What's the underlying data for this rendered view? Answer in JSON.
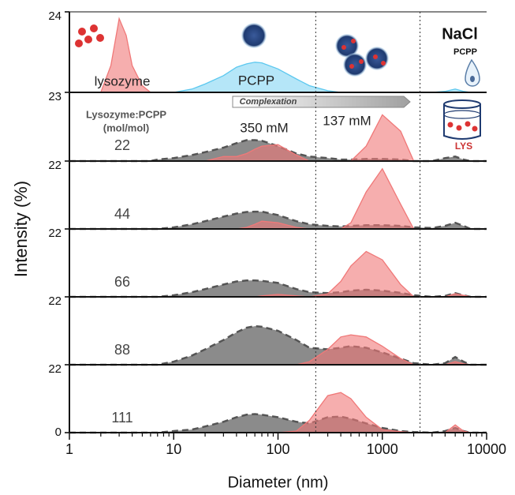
{
  "chart_data": [
    {
      "type": "area",
      "x": [
        1,
        1.5,
        2,
        2.5,
        3,
        3.5,
        4,
        5,
        6,
        7,
        10,
        15,
        20,
        30,
        40,
        50,
        60,
        70,
        100,
        150,
        200,
        300,
        400,
        500,
        700,
        1000,
        1500,
        2000,
        3000,
        4000,
        5000,
        6000,
        7000,
        10000
      ],
      "series": [
        {
          "name": "lysozyme",
          "color": "#f07878",
          "values": [
            0,
            0,
            0,
            8,
            22,
            17,
            8,
            2,
            0,
            0,
            0,
            0,
            0,
            0,
            0,
            0,
            0,
            0,
            0,
            0,
            0,
            0,
            0,
            0,
            0,
            0,
            0,
            0,
            0,
            0,
            0,
            0,
            0,
            0
          ]
        },
        {
          "name": "PCPP",
          "color": "#5cc8ef",
          "values": [
            0,
            0,
            0,
            0,
            0,
            0,
            0,
            0,
            0,
            0,
            0,
            1,
            2.5,
            5,
            7.5,
            8.5,
            9,
            8.8,
            7,
            4,
            2,
            0.5,
            0,
            0,
            0,
            0,
            0,
            0,
            0,
            0.3,
            1,
            0.3,
            0,
            0
          ]
        }
      ],
      "annotations": [
        "NaCl",
        "PCPP"
      ],
      "ylim": [
        0,
        24
      ],
      "yticks": [
        24
      ]
    },
    {
      "type": "area",
      "x": [
        1,
        1.5,
        2,
        2.5,
        3,
        3.5,
        4,
        5,
        6,
        7,
        10,
        15,
        20,
        30,
        40,
        50,
        60,
        70,
        100,
        150,
        200,
        300,
        400,
        500,
        700,
        1000,
        1500,
        2000,
        3000,
        4000,
        5000,
        6000,
        7000,
        10000
      ],
      "series": [
        {
          "name": "350 mM",
          "color": "#6e6e6e",
          "values": [
            0,
            0,
            0,
            0,
            0,
            0,
            0,
            0,
            0,
            0.5,
            1,
            2,
            3,
            4.5,
            6,
            7,
            7,
            6.8,
            5,
            2.5,
            1.5,
            1,
            0.5,
            0.5,
            0.7,
            0.7,
            0.5,
            0,
            0,
            1,
            1.5,
            0.5,
            0,
            0
          ]
        },
        {
          "name": "137 mM",
          "color": "#f07878",
          "values": [
            0,
            0,
            0,
            0,
            0,
            0,
            0,
            0,
            0,
            0,
            0,
            0,
            0,
            1.5,
            1.5,
            2.5,
            4,
            5,
            5.5,
            2,
            0,
            0,
            0,
            0,
            5,
            15.5,
            10,
            0,
            0,
            0,
            0,
            0,
            0,
            0
          ]
        }
      ],
      "ratio_title": [
        "Lysozyme:PCPP",
        "(mol/mol)"
      ],
      "ratio": "22",
      "annotations": [
        "Complexation",
        "LYS"
      ],
      "ylim": [
        0,
        23
      ],
      "yticks": [
        23
      ]
    },
    {
      "type": "area",
      "x": [
        1,
        1.5,
        2,
        2.5,
        3,
        3.5,
        4,
        5,
        6,
        7,
        10,
        15,
        20,
        30,
        40,
        50,
        60,
        70,
        100,
        150,
        200,
        300,
        400,
        500,
        700,
        1000,
        1500,
        2000,
        3000,
        4000,
        5000,
        6000,
        7000,
        10000
      ],
      "series": [
        {
          "color": "#6e6e6e",
          "values": [
            0,
            0,
            0,
            0,
            0,
            0,
            0,
            0,
            0,
            0,
            0.5,
            1.5,
            2.5,
            4,
            5,
            5.5,
            5.6,
            5.6,
            4.5,
            2.5,
            1.5,
            1,
            0.8,
            1,
            1.2,
            1.2,
            1,
            0.5,
            0.3,
            1,
            2,
            1,
            0,
            0
          ]
        },
        {
          "color": "#f07878",
          "values": [
            0,
            0,
            0,
            0,
            0,
            0,
            0,
            0,
            0,
            0,
            0,
            0,
            0,
            0,
            0,
            0.5,
            1.5,
            2.5,
            2,
            0.5,
            0,
            0,
            0,
            2,
            12,
            19.5,
            8,
            0,
            0,
            0,
            0,
            0,
            0,
            0
          ]
        }
      ],
      "ratio": "44",
      "ylim": [
        0,
        22
      ],
      "yticks": [
        22
      ]
    },
    {
      "type": "area",
      "x": [
        1,
        1.5,
        2,
        2.5,
        3,
        3.5,
        4,
        5,
        6,
        7,
        10,
        15,
        20,
        30,
        40,
        50,
        60,
        70,
        100,
        150,
        200,
        300,
        400,
        500,
        700,
        1000,
        1500,
        2000,
        3000,
        4000,
        5000,
        6000,
        7000,
        10000
      ],
      "series": [
        {
          "color": "#6e6e6e",
          "values": [
            0,
            0,
            0,
            0,
            0,
            0,
            0,
            0,
            0,
            0,
            0.5,
            1.5,
            2.5,
            4,
            5,
            5.3,
            5.3,
            5.2,
            4.5,
            2.5,
            1.5,
            1.2,
            1.5,
            2,
            2.3,
            2,
            1.3,
            0.5,
            0,
            0.3,
            1.2,
            0.5,
            0,
            0
          ]
        },
        {
          "color": "#f07878",
          "values": [
            0,
            0,
            0,
            0,
            0,
            0,
            0,
            0,
            0,
            0,
            0,
            0,
            0,
            0,
            0,
            0,
            0,
            0.3,
            0.8,
            0.3,
            0,
            1,
            5,
            10,
            14.7,
            12,
            4,
            0,
            0,
            0,
            1,
            0.5,
            0,
            0
          ]
        }
      ],
      "ratio": "66",
      "ylim": [
        0,
        22
      ],
      "yticks": [
        22
      ]
    },
    {
      "type": "area",
      "x": [
        1,
        1.5,
        2,
        2.5,
        3,
        3.5,
        4,
        5,
        6,
        7,
        10,
        15,
        20,
        30,
        40,
        50,
        60,
        70,
        100,
        150,
        200,
        300,
        400,
        500,
        700,
        1000,
        1500,
        2000,
        3000,
        4000,
        5000,
        6000,
        7000,
        10000
      ],
      "series": [
        {
          "color": "#6e6e6e",
          "values": [
            0,
            0,
            0,
            0,
            0,
            0,
            0,
            0,
            0,
            0,
            1,
            3,
            5,
            8,
            10.5,
            12,
            12.5,
            12.3,
            11,
            8,
            5.5,
            5,
            5.5,
            6,
            5.5,
            4,
            2,
            0.5,
            0,
            0.5,
            2.5,
            1,
            0,
            0
          ]
        },
        {
          "color": "#f07878",
          "values": [
            0,
            0,
            0,
            0,
            0,
            0,
            0,
            0,
            0,
            0,
            0,
            0,
            0,
            0,
            0,
            0,
            0,
            0,
            0,
            0,
            1,
            5,
            9,
            9.7,
            9,
            6,
            2,
            0,
            0,
            0,
            1,
            0.3,
            0,
            0
          ]
        }
      ],
      "ratio": "88",
      "ylim": [
        0,
        22
      ],
      "yticks": [
        22
      ]
    },
    {
      "type": "area",
      "x": [
        1,
        1.5,
        2,
        2.5,
        3,
        3.5,
        4,
        5,
        6,
        7,
        10,
        15,
        20,
        30,
        40,
        50,
        60,
        70,
        100,
        150,
        200,
        300,
        400,
        500,
        700,
        1000,
        1500,
        2000,
        3000,
        4000,
        5000,
        6000,
        7000,
        10000
      ],
      "series": [
        {
          "color": "#6e6e6e",
          "values": [
            0,
            0,
            0,
            0,
            0,
            0,
            0,
            0,
            0,
            0,
            0.5,
            1,
            2,
            3.5,
            5,
            5.8,
            6,
            5.8,
            5,
            3.5,
            3,
            5,
            5.2,
            4.5,
            3,
            1.5,
            0.5,
            0.2,
            0,
            0.5,
            1.5,
            0.5,
            0,
            0
          ]
        },
        {
          "color": "#f07878",
          "values": [
            0,
            0,
            0,
            0,
            0,
            0,
            0,
            0,
            0,
            0,
            0,
            0,
            0,
            0,
            0,
            0,
            0,
            0,
            0,
            0.5,
            4,
            12,
            13,
            11,
            5,
            1,
            0.3,
            0,
            0,
            0,
            2.5,
            0.5,
            0,
            0
          ]
        }
      ],
      "ratio": "111",
      "ylim": [
        0,
        22
      ],
      "yticks": [
        0,
        22
      ],
      "xlim": [
        1,
        10000
      ],
      "xticks": [
        1,
        10,
        100,
        1000,
        10000
      ],
      "xscale": "log",
      "vlines": [
        230,
        2300
      ],
      "xlabel": "Diameter (nm)",
      "ylabel": "Intensity (%)"
    }
  ]
}
